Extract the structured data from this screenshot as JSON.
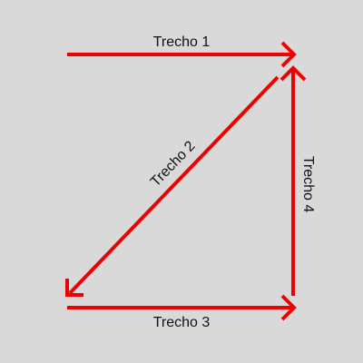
{
  "colors": {
    "background": "#d9d9d9",
    "arrow": "#ee0000",
    "text": "#111111"
  },
  "segments": [
    {
      "label": "Trecho 1",
      "direction": "right"
    },
    {
      "label": "Trecho 2",
      "direction": "down-left"
    },
    {
      "label": "Trecho 3",
      "direction": "right"
    },
    {
      "label": "Trecho 4",
      "direction": "up"
    }
  ]
}
